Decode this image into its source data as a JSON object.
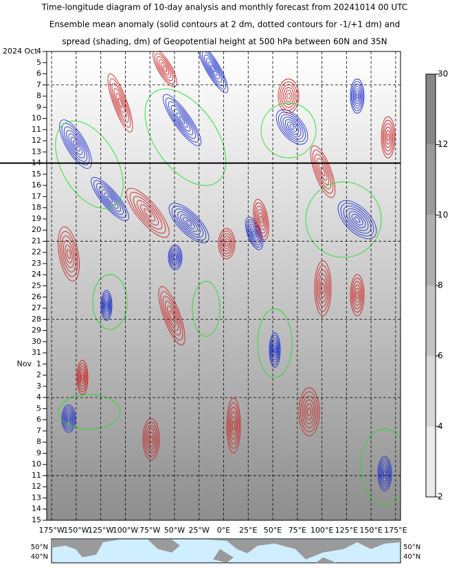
{
  "chart_data": {
    "type": "hovmoller",
    "title": [
      "Time-longitude diagram of 10-day analysis and monthly forecast from 20241014 00 UTC",
      "Ensemble mean anomaly (solid contours at 2 dm, dotted contours for -1/+1 dm) and",
      "spread (shading, dm) of Geopotential height at 500 hPa between 60N and 35N"
    ],
    "year_month_label": "2024 Oct",
    "categories": [
      "4",
      "5",
      "6",
      "7",
      "8",
      "9",
      "10",
      "11",
      "12",
      "13",
      "14",
      "15",
      "16",
      "17",
      "18",
      "19",
      "20",
      "21",
      "22",
      "23",
      "24",
      "25",
      "26",
      "27",
      "28",
      "29",
      "30",
      "31",
      "Nov  1",
      "2",
      "3",
      "4",
      "5",
      "6",
      "7",
      "8",
      "9",
      "10",
      "11",
      "12",
      "13",
      "14",
      "15"
    ],
    "xlim": [
      -180,
      180
    ],
    "xticks": [
      {
        "value": -175,
        "label": "175°W"
      },
      {
        "value": -150,
        "label": "150°W"
      },
      {
        "value": -125,
        "label": "125°W"
      },
      {
        "value": -100,
        "label": "100°W"
      },
      {
        "value": -75,
        "label": "75°W"
      },
      {
        "value": -50,
        "label": "50°W"
      },
      {
        "value": -25,
        "label": "25°W"
      },
      {
        "value": 0,
        "label": "0°E"
      },
      {
        "value": 25,
        "label": "25°E"
      },
      {
        "value": 50,
        "label": "50°E"
      },
      {
        "value": 75,
        "label": "75°E"
      },
      {
        "value": 100,
        "label": "100°E"
      },
      {
        "value": 125,
        "label": "125°E"
      },
      {
        "value": 150,
        "label": "150°E"
      },
      {
        "value": 175,
        "label": "175°E"
      }
    ],
    "colorbar_ticks": [
      2,
      4,
      6,
      8,
      10,
      12,
      30
    ],
    "map_labels": [
      "50°N",
      "40°N"
    ]
  }
}
